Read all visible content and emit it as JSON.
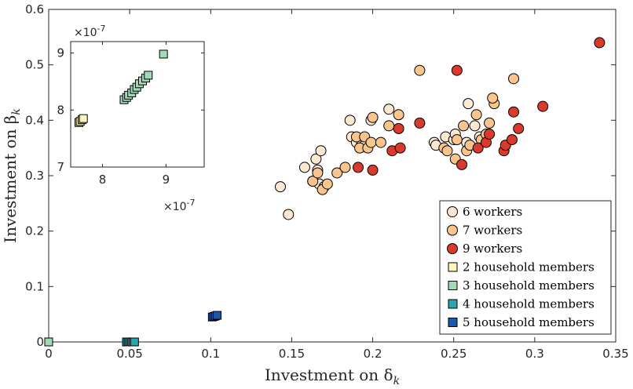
{
  "chart_data": [
    {
      "type": "scatter",
      "title": "",
      "xlabel_text": "Investment on δ",
      "xlabel_sub": "k",
      "ylabel_text": "Investment on β",
      "ylabel_sub": "k",
      "xlim": [
        0,
        0.35
      ],
      "ylim": [
        0,
        0.6
      ],
      "xticks": [
        "0",
        "0.05",
        "0.1",
        "0.15",
        "0.2",
        "0.25",
        "0.3",
        "0.35"
      ],
      "yticks": [
        "0",
        "0.1",
        "0.2",
        "0.3",
        "0.4",
        "0.5",
        "0.6"
      ],
      "legend_position": "bottom-right",
      "series": [
        {
          "name": "6 workers",
          "marker": "circle",
          "color": "#fde9d2",
          "points": [
            [
              0.143,
              0.28
            ],
            [
              0.148,
              0.23
            ],
            [
              0.158,
              0.315
            ],
            [
              0.163,
              0.29
            ],
            [
              0.165,
              0.33
            ],
            [
              0.166,
              0.31
            ],
            [
              0.168,
              0.345
            ],
            [
              0.167,
              0.285
            ],
            [
              0.17,
              0.28
            ],
            [
              0.186,
              0.4
            ],
            [
              0.187,
              0.37
            ],
            [
              0.19,
              0.36
            ],
            [
              0.193,
              0.355
            ],
            [
              0.195,
              0.355
            ],
            [
              0.199,
              0.4
            ],
            [
              0.21,
              0.42
            ],
            [
              0.238,
              0.36
            ],
            [
              0.239,
              0.355
            ],
            [
              0.245,
              0.37
            ],
            [
              0.25,
              0.365
            ],
            [
              0.251,
              0.375
            ],
            [
              0.258,
              0.36
            ],
            [
              0.259,
              0.43
            ],
            [
              0.263,
              0.39
            ],
            [
              0.266,
              0.37
            ]
          ]
        },
        {
          "name": "7 workers",
          "marker": "circle",
          "color": "#f9c58c",
          "points": [
            [
              0.163,
              0.29
            ],
            [
              0.166,
              0.305
            ],
            [
              0.169,
              0.275
            ],
            [
              0.172,
              0.285
            ],
            [
              0.178,
              0.305
            ],
            [
              0.183,
              0.315
            ],
            [
              0.19,
              0.37
            ],
            [
              0.192,
              0.35
            ],
            [
              0.195,
              0.37
            ],
            [
              0.197,
              0.35
            ],
            [
              0.199,
              0.36
            ],
            [
              0.2,
              0.405
            ],
            [
              0.205,
              0.36
            ],
            [
              0.21,
              0.39
            ],
            [
              0.216,
              0.41
            ],
            [
              0.229,
              0.49
            ],
            [
              0.244,
              0.35
            ],
            [
              0.246,
              0.345
            ],
            [
              0.251,
              0.33
            ],
            [
              0.252,
              0.365
            ],
            [
              0.256,
              0.39
            ],
            [
              0.258,
              0.345
            ],
            [
              0.26,
              0.355
            ],
            [
              0.264,
              0.41
            ],
            [
              0.267,
              0.365
            ],
            [
              0.27,
              0.375
            ],
            [
              0.272,
              0.395
            ],
            [
              0.275,
              0.43
            ],
            [
              0.274,
              0.44
            ],
            [
              0.287,
              0.475
            ]
          ]
        },
        {
          "name": "9 workers",
          "marker": "circle",
          "color": "#d93a2b",
          "points": [
            [
              0.191,
              0.315
            ],
            [
              0.2,
              0.31
            ],
            [
              0.212,
              0.345
            ],
            [
              0.217,
              0.35
            ],
            [
              0.216,
              0.385
            ],
            [
              0.229,
              0.395
            ],
            [
              0.252,
              0.49
            ],
            [
              0.255,
              0.32
            ],
            [
              0.265,
              0.35
            ],
            [
              0.27,
              0.36
            ],
            [
              0.272,
              0.375
            ],
            [
              0.281,
              0.345
            ],
            [
              0.282,
              0.355
            ],
            [
              0.286,
              0.365
            ],
            [
              0.287,
              0.415
            ],
            [
              0.29,
              0.385
            ],
            [
              0.305,
              0.425
            ],
            [
              0.34,
              0.54
            ]
          ]
        },
        {
          "name": "2 household members",
          "marker": "square",
          "color": "#fcf6c0",
          "points": [
            [
              7.63e-08,
              7.78e-08
            ],
            [
              7.65e-08,
              7.8e-08
            ],
            [
              7.68e-08,
              7.83e-08
            ],
            [
              7.7e-08,
              7.85e-08
            ]
          ]
        },
        {
          "name": "3 household members",
          "marker": "square",
          "color": "#a3d9b8",
          "points": [
            [
              0,
              0
            ],
            [
              8.34e-08,
              8.18e-08
            ],
            [
              8.38e-08,
              8.22e-08
            ],
            [
              8.41e-08,
              8.26e-08
            ],
            [
              8.46e-08,
              8.3e-08
            ],
            [
              8.5e-08,
              8.36e-08
            ],
            [
              8.54e-08,
              8.4e-08
            ],
            [
              8.58e-08,
              8.46e-08
            ],
            [
              8.63e-08,
              8.51e-08
            ],
            [
              8.68e-08,
              8.56e-08
            ],
            [
              8.72e-08,
              8.61e-08
            ],
            [
              8.96e-08,
              8.98e-08
            ]
          ]
        },
        {
          "name": "4 household members",
          "marker": "square",
          "color": "#2aa4b0",
          "points": [
            [
              0.048,
              0
            ],
            [
              0.049,
              0
            ],
            [
              0.05,
              0
            ],
            [
              0.051,
              0
            ],
            [
              0.052,
              0
            ],
            [
              0.053,
              0
            ]
          ]
        },
        {
          "name": "5 household members",
          "marker": "square",
          "color": "#1d57a8",
          "points": [
            [
              0.101,
              0.045
            ],
            [
              0.102,
              0.046
            ],
            [
              0.103,
              0.047
            ],
            [
              0.104,
              0.048
            ]
          ]
        }
      ]
    },
    {
      "type": "scatter",
      "inset": true,
      "x_exponent": "×10",
      "x_exponent_power": "-7",
      "y_exponent": "×10",
      "y_exponent_power": "-7",
      "xlim": [
        7.5,
        9.6
      ],
      "ylim": [
        7,
        9.2
      ],
      "xticks": [
        "8",
        "9"
      ],
      "yticks": [
        "7",
        "8",
        "9"
      ],
      "series": [
        {
          "name": "2 household members",
          "marker": "square",
          "color": "#fcf6c0",
          "points": [
            [
              7.63,
              7.78
            ],
            [
              7.65,
              7.8
            ],
            [
              7.68,
              7.83
            ],
            [
              7.7,
              7.85
            ]
          ]
        },
        {
          "name": "3 household members",
          "marker": "square",
          "color": "#a3d9b8",
          "points": [
            [
              8.34,
              8.18
            ],
            [
              8.38,
              8.22
            ],
            [
              8.41,
              8.26
            ],
            [
              8.46,
              8.3
            ],
            [
              8.5,
              8.36
            ],
            [
              8.54,
              8.4
            ],
            [
              8.58,
              8.46
            ],
            [
              8.63,
              8.51
            ],
            [
              8.68,
              8.56
            ],
            [
              8.72,
              8.61
            ],
            [
              8.96,
              8.98
            ]
          ]
        }
      ]
    }
  ]
}
